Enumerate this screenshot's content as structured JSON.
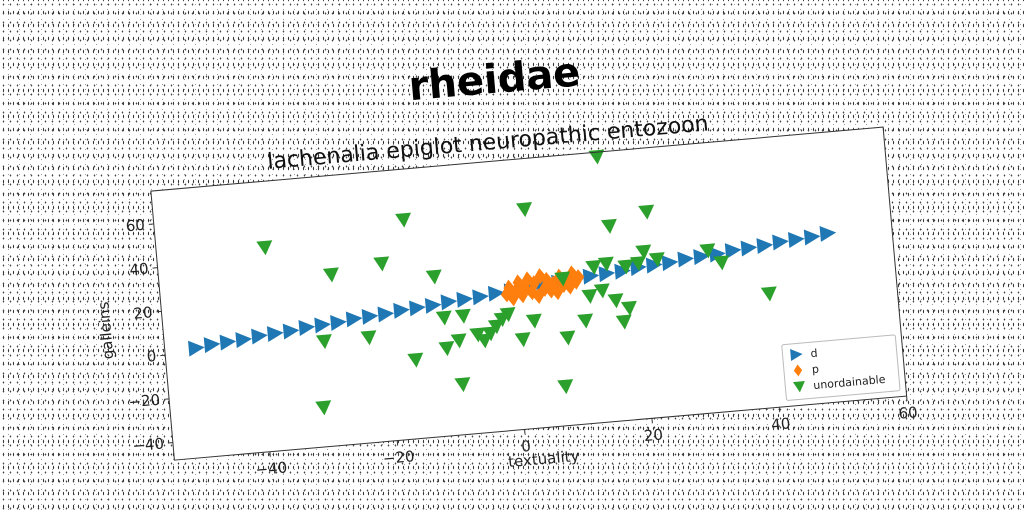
{
  "chart_data": {
    "type": "scatter",
    "suptitle": "rheidae",
    "title": "lachenalia epiglot neuropathic entozoon",
    "xlabel": "textuality",
    "ylabel": "galleins",
    "xlim": [
      -55,
      60
    ],
    "ylim": [
      -48,
      75
    ],
    "xticks": [
      -40,
      -20,
      0,
      20,
      40,
      60
    ],
    "yticks": [
      -40,
      -20,
      0,
      20,
      40,
      60
    ],
    "xtick_labels": [
      "−40",
      "−20",
      "0",
      "20",
      "40",
      "60"
    ],
    "ytick_labels": [
      "−40",
      "−20",
      "0",
      "20",
      "40",
      "60"
    ],
    "grid": false,
    "legend_position": "lower-right",
    "series": [
      {
        "name": "d",
        "marker": "triangle-right",
        "color": "#1f77b4",
        "points": [
          [
            -50,
            2
          ],
          [
            -47.5,
            3
          ],
          [
            -45,
            3.5
          ],
          [
            -42.5,
            4
          ],
          [
            -40,
            5
          ],
          [
            -37.5,
            5.5
          ],
          [
            -35,
            6
          ],
          [
            -32.5,
            7
          ],
          [
            -30,
            7.5
          ],
          [
            -27.5,
            8
          ],
          [
            -25,
            9
          ],
          [
            -22.5,
            9.5
          ],
          [
            -20,
            10
          ],
          [
            -17.5,
            11
          ],
          [
            -15,
            11.5
          ],
          [
            -12.5,
            12
          ],
          [
            -10,
            13
          ],
          [
            -7.5,
            13.5
          ],
          [
            -5,
            14
          ],
          [
            -2.5,
            15
          ],
          [
            0,
            15.5
          ],
          [
            2.5,
            16
          ],
          [
            5,
            17
          ],
          [
            7.5,
            17.5
          ],
          [
            10,
            18
          ],
          [
            12.5,
            19
          ],
          [
            15,
            19.5
          ],
          [
            17.5,
            20
          ],
          [
            20,
            21
          ],
          [
            22.5,
            21.5
          ],
          [
            25,
            22
          ],
          [
            27.5,
            23
          ],
          [
            30,
            23.5
          ],
          [
            32.5,
            24
          ],
          [
            35,
            25
          ],
          [
            37.5,
            25.5
          ],
          [
            40,
            26
          ],
          [
            42.5,
            27
          ],
          [
            45,
            27.5
          ],
          [
            47.5,
            28
          ],
          [
            50,
            29
          ]
        ]
      },
      {
        "name": "p",
        "marker": "diamond",
        "color": "#ff7f0e",
        "points": [
          [
            -1,
            14
          ],
          [
            -0.5,
            17
          ],
          [
            0,
            12
          ],
          [
            0.5,
            15
          ],
          [
            1,
            19
          ],
          [
            1.5,
            13
          ],
          [
            2,
            16
          ],
          [
            2.5,
            20
          ],
          [
            3,
            14
          ],
          [
            3.5,
            18
          ],
          [
            4,
            12
          ],
          [
            4.5,
            21
          ],
          [
            5,
            15
          ],
          [
            5.5,
            19
          ],
          [
            6,
            14
          ],
          [
            6.5,
            17
          ],
          [
            7,
            13
          ],
          [
            7.5,
            20
          ],
          [
            8,
            16
          ],
          [
            8.5,
            18
          ],
          [
            9,
            15
          ],
          [
            9.5,
            21
          ],
          [
            10,
            17
          ],
          [
            10.5,
            19
          ]
        ]
      },
      {
        "name": "unordainable",
        "marker": "triangle-down",
        "color": "#2ca02c",
        "points": [
          [
            -38,
            45
          ],
          [
            -31,
            -30
          ],
          [
            -30,
            0
          ],
          [
            -28,
            30
          ],
          [
            -23,
            0
          ],
          [
            -20,
            33
          ],
          [
            -16,
            -12
          ],
          [
            -16,
            52
          ],
          [
            -12,
            25
          ],
          [
            -11,
            -8
          ],
          [
            -11,
            6
          ],
          [
            -9,
            -25
          ],
          [
            -9,
            -5
          ],
          [
            -8,
            6
          ],
          [
            -6,
            -3
          ],
          [
            -5,
            -6
          ],
          [
            -4,
            -3
          ],
          [
            -3,
            0
          ],
          [
            -2,
            3
          ],
          [
            -1,
            5
          ],
          [
            1,
            -7
          ],
          [
            3,
            1
          ],
          [
            3,
            52
          ],
          [
            7,
            -30
          ],
          [
            8,
            -8
          ],
          [
            8,
            19
          ],
          [
            11,
            -1
          ],
          [
            12,
            10
          ],
          [
            13,
            23
          ],
          [
            14,
            12
          ],
          [
            15,
            24
          ],
          [
            15,
            73
          ],
          [
            16,
            7
          ],
          [
            16,
            41
          ],
          [
            17,
            -3
          ],
          [
            18,
            22
          ],
          [
            18,
            3
          ],
          [
            20,
            23
          ],
          [
            21,
            28
          ],
          [
            22,
            46
          ],
          [
            23,
            24
          ],
          [
            31,
            26
          ],
          [
            33,
            20
          ],
          [
            40,
            4
          ]
        ]
      }
    ]
  }
}
